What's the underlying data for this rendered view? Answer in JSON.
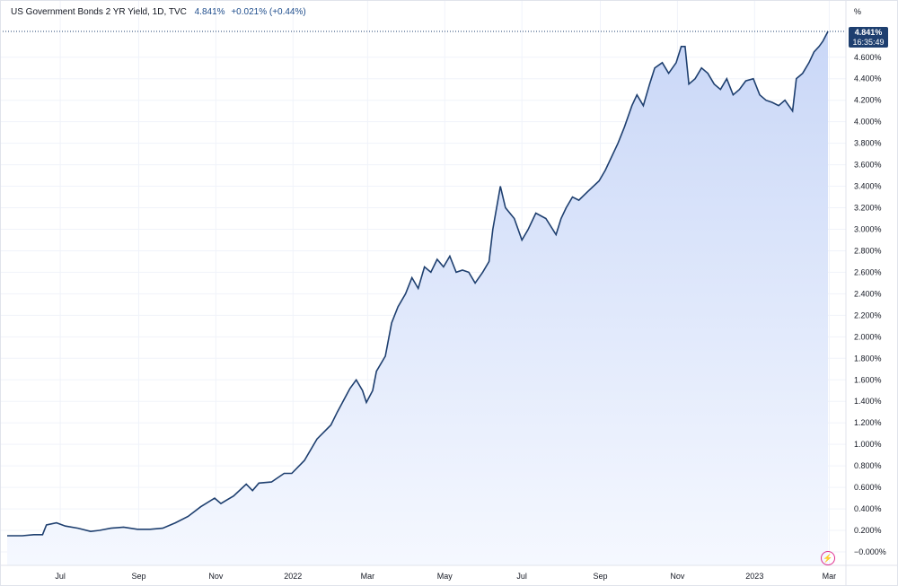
{
  "legend": {
    "symbol": "US Government Bonds 2 YR Yield, 1D, TVC",
    "last": "4.841%",
    "change": "+0.021% (+0.44%)"
  },
  "axis_unit": "%",
  "last_box": {
    "value": "4.841%",
    "countdown": "16:35:49"
  },
  "flash_icon": "lightning-icon",
  "colors": {
    "line": "#1e3f6f",
    "fill_top": "#c9d7f7",
    "fill_bottom": "#f5f8ff",
    "grid": "#f0f3fa",
    "last_box": "#1e3f6f",
    "flash": "#e02f8f"
  },
  "chart_data": {
    "type": "area",
    "title": "US Government Bonds 2 YR Yield, 1D, TVC",
    "xlabel": "",
    "ylabel": "",
    "x_ticks": [
      "Jul",
      "Sep",
      "Nov",
      "2022",
      "Mar",
      "May",
      "Jul",
      "Sep",
      "Nov",
      "2023",
      "Mar"
    ],
    "y_ticks": [
      "4.600%",
      "4.400%",
      "4.200%",
      "4.000%",
      "3.800%",
      "3.600%",
      "3.400%",
      "3.200%",
      "3.000%",
      "2.800%",
      "2.600%",
      "2.400%",
      "2.200%",
      "2.000%",
      "1.800%",
      "1.600%",
      "1.400%",
      "1.200%",
      "1.000%",
      "0.800%",
      "0.600%",
      "0.400%",
      "0.200%",
      "−0.000%"
    ],
    "ylim": [
      -0.05,
      4.85
    ],
    "grid": true,
    "series": [
      {
        "x": [
          "2021-05-20",
          "2021-06-01",
          "2021-06-10",
          "2021-06-17",
          "2021-06-20",
          "2021-06-28",
          "2021-07-05",
          "2021-07-15",
          "2021-07-25",
          "2021-08-01",
          "2021-08-10",
          "2021-08-20",
          "2021-08-31",
          "2021-09-10",
          "2021-09-20",
          "2021-09-30",
          "2021-10-10",
          "2021-10-20",
          "2021-10-31",
          "2021-11-05",
          "2021-11-15",
          "2021-11-25",
          "2021-11-30",
          "2021-12-05",
          "2021-12-15",
          "2021-12-25",
          "2021-12-31",
          "2022-01-10",
          "2022-01-20",
          "2022-01-31",
          "2022-02-05",
          "2022-02-15",
          "2022-02-20",
          "2022-02-25",
          "2022-02-28",
          "2022-03-05",
          "2022-03-08",
          "2022-03-15",
          "2022-03-20",
          "2022-03-25",
          "2022-03-31",
          "2022-04-05",
          "2022-04-10",
          "2022-04-15",
          "2022-04-20",
          "2022-04-25",
          "2022-04-30",
          "2022-05-05",
          "2022-05-10",
          "2022-05-15",
          "2022-05-20",
          "2022-05-25",
          "2022-05-31",
          "2022-06-05",
          "2022-06-08",
          "2022-06-14",
          "2022-06-18",
          "2022-06-25",
          "2022-07-01",
          "2022-07-06",
          "2022-07-12",
          "2022-07-20",
          "2022-07-28",
          "2022-08-01",
          "2022-08-05",
          "2022-08-10",
          "2022-08-15",
          "2022-08-22",
          "2022-08-31",
          "2022-09-05",
          "2022-09-15",
          "2022-09-20",
          "2022-09-26",
          "2022-09-30",
          "2022-10-05",
          "2022-10-10",
          "2022-10-14",
          "2022-10-20",
          "2022-10-25",
          "2022-10-31",
          "2022-11-04",
          "2022-11-07",
          "2022-11-10",
          "2022-11-15",
          "2022-11-20",
          "2022-11-25",
          "2022-11-30",
          "2022-12-05",
          "2022-12-10",
          "2022-12-15",
          "2022-12-20",
          "2022-12-25",
          "2022-12-31",
          "2023-01-05",
          "2023-01-10",
          "2023-01-15",
          "2023-01-20",
          "2023-01-25",
          "2023-01-31",
          "2023-02-03",
          "2023-02-08",
          "2023-02-13",
          "2023-02-17",
          "2023-02-21",
          "2023-02-24",
          "2023-02-28"
        ],
        "values": [
          0.15,
          0.15,
          0.16,
          0.16,
          0.25,
          0.27,
          0.24,
          0.22,
          0.19,
          0.2,
          0.22,
          0.23,
          0.21,
          0.21,
          0.22,
          0.27,
          0.33,
          0.42,
          0.5,
          0.45,
          0.52,
          0.63,
          0.57,
          0.64,
          0.65,
          0.73,
          0.73,
          0.85,
          1.05,
          1.18,
          1.3,
          1.52,
          1.6,
          1.5,
          1.39,
          1.5,
          1.68,
          1.82,
          2.13,
          2.28,
          2.4,
          2.55,
          2.45,
          2.65,
          2.6,
          2.72,
          2.65,
          2.75,
          2.6,
          2.62,
          2.6,
          2.5,
          2.6,
          2.7,
          3.0,
          3.4,
          3.2,
          3.1,
          2.9,
          3.0,
          3.15,
          3.1,
          2.95,
          3.1,
          3.2,
          3.3,
          3.27,
          3.35,
          3.45,
          3.55,
          3.8,
          3.95,
          4.15,
          4.25,
          4.15,
          4.35,
          4.5,
          4.55,
          4.45,
          4.55,
          4.7,
          4.7,
          4.35,
          4.4,
          4.5,
          4.45,
          4.35,
          4.3,
          4.4,
          4.25,
          4.3,
          4.38,
          4.4,
          4.25,
          4.2,
          4.18,
          4.15,
          4.2,
          4.1,
          4.4,
          4.45,
          4.55,
          4.65,
          4.7,
          4.75,
          4.84
        ]
      }
    ]
  }
}
